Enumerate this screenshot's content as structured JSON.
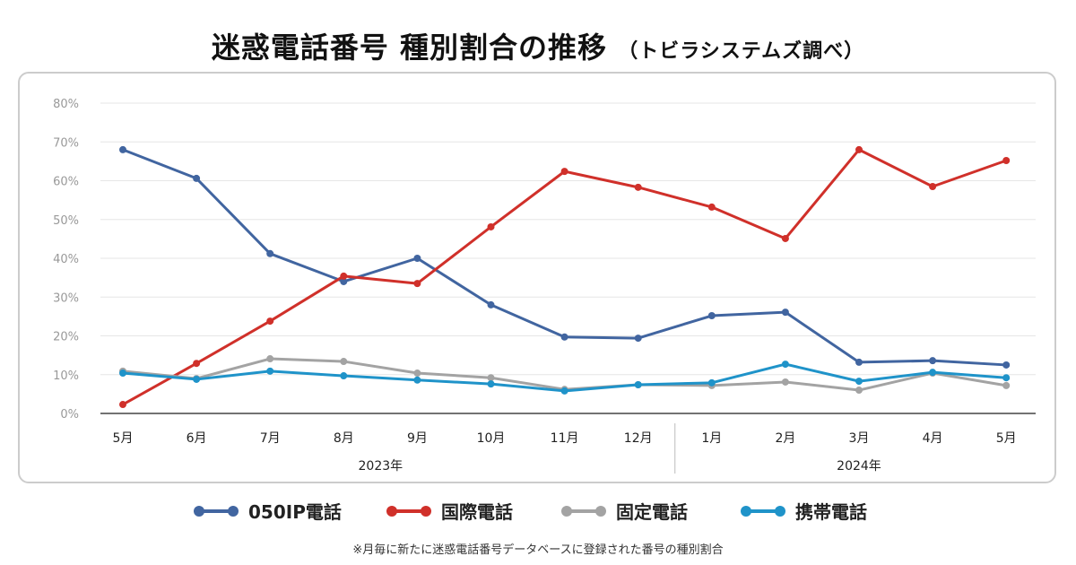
{
  "title": {
    "main": "迷惑電話番号 種別割合の推移",
    "sub": "（トビラシステムズ調べ）"
  },
  "footnote": "※月毎に新たに迷惑電話番号データベースに登録された番号の種別割合",
  "chart_data": {
    "type": "line",
    "title": "迷惑電話番号 種別割合の推移",
    "categories": [
      "5月",
      "6月",
      "7月",
      "8月",
      "9月",
      "10月",
      "11月",
      "12月",
      "1月",
      "2月",
      "3月",
      "4月",
      "5月"
    ],
    "year_labels": [
      {
        "label": "2023年",
        "span": [
          0,
          7
        ]
      },
      {
        "label": "2024年",
        "span": [
          8,
          12
        ]
      }
    ],
    "ylim": [
      0,
      80
    ],
    "yticks": [
      "0%",
      "10%",
      "20%",
      "30%",
      "40%",
      "50%",
      "60%",
      "70%",
      "80%"
    ],
    "grid": true,
    "legend": "bottom",
    "series": [
      {
        "name": "050IP電話",
        "color": "#4165a0",
        "values": [
          68.0,
          60.6,
          41.2,
          34.0,
          40.0,
          28.0,
          19.7,
          19.4,
          25.2,
          26.1,
          13.2,
          13.6,
          12.5
        ]
      },
      {
        "name": "国際電話",
        "color": "#d0302a",
        "values": [
          2.3,
          12.9,
          23.8,
          35.4,
          33.5,
          48.1,
          62.4,
          58.3,
          53.2,
          45.1,
          68.0,
          58.5,
          65.2
        ]
      },
      {
        "name": "固定電話",
        "color": "#a3a3a3",
        "values": [
          10.9,
          9.0,
          14.1,
          13.4,
          10.4,
          9.2,
          6.2,
          7.4,
          7.2,
          8.1,
          6.0,
          10.4,
          7.2
        ]
      },
      {
        "name": "携帯電話",
        "color": "#1f93c9",
        "values": [
          10.4,
          8.8,
          10.9,
          9.7,
          8.6,
          7.6,
          5.8,
          7.4,
          7.9,
          12.7,
          8.3,
          10.6,
          9.2
        ]
      }
    ]
  }
}
